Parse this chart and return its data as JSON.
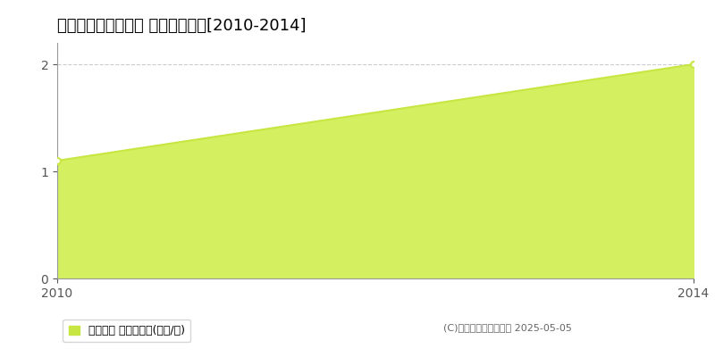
{
  "title": "気仙郡住田町下有住 土地価格推移[2010-2014]",
  "x_values": [
    2010,
    2014
  ],
  "y_values": [
    1.1,
    2.0
  ],
  "xlim": [
    2010,
    2014
  ],
  "ylim": [
    0,
    2.2
  ],
  "yticks": [
    0,
    1,
    2
  ],
  "xticks": [
    2010,
    2014
  ],
  "line_color": "#c8e642",
  "fill_color": "#d4ef60",
  "marker_color": "#ffffff",
  "marker_edge_color": "#c8e642",
  "grid_color": "#cccccc",
  "background_color": "#ffffff",
  "title_fontsize": 13,
  "legend_label": "土地価格 平均坪単価(万円/坪)",
  "copyright_text": "(C)土地価格ドットコム 2025-05-05",
  "tick_fontsize": 10
}
